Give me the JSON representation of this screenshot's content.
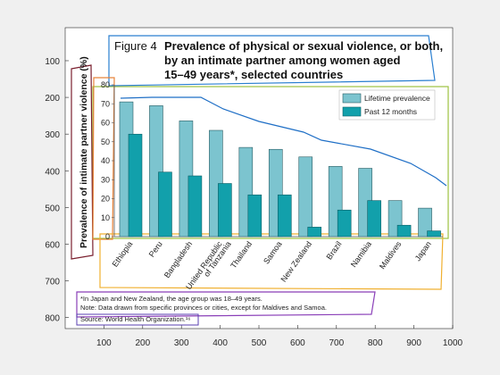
{
  "chart_data": {
    "type": "bar",
    "figure": {
      "label": "Figure 4",
      "title_lines": [
        "Prevalence of physical or sexual violence, or both,",
        "by an intimate partner among women aged",
        "15–49 years*, selected countries"
      ]
    },
    "ylabel": "Prevalence of intimate partner violence (%)",
    "ylim": [
      0,
      80
    ],
    "yticks": [
      0,
      10,
      20,
      30,
      40,
      50,
      60,
      70,
      80
    ],
    "categories": [
      [
        "Ethiopia"
      ],
      [
        "Peru"
      ],
      [
        "Bangladesh"
      ],
      [
        "United Republic",
        "of Tanzania"
      ],
      [
        "Thailand"
      ],
      [
        "Samoa"
      ],
      [
        "New Zealand"
      ],
      [
        "Brazil"
      ],
      [
        "Namibia"
      ],
      [
        "Maldives"
      ],
      [
        "Japan"
      ]
    ],
    "series": [
      {
        "name": "Lifetime prevalence",
        "color": "#7cc4cf",
        "values": [
          71,
          69,
          61,
          56,
          47,
          46,
          42,
          37,
          36,
          19,
          15
        ]
      },
      {
        "name": "Past 12 months",
        "color": "#12a0ab",
        "values": [
          54,
          34,
          32,
          28,
          22,
          22,
          5,
          14,
          19,
          6,
          3
        ]
      }
    ],
    "footnotes": [
      "*In Japan and New Zealand, the age group was 18–49 years.",
      "Note: Data drawn from specific provinces or cities, except for Maldives and Samoa.",
      "Source: World Health Organization.¹⁶"
    ],
    "grid": false,
    "legend_position": "top-right"
  },
  "outer_axes": {
    "xticks": [
      100,
      200,
      300,
      400,
      500,
      600,
      700,
      800,
      900,
      1000
    ],
    "yticks": [
      100,
      200,
      300,
      400,
      500,
      600,
      700,
      800
    ]
  },
  "trend_line": {
    "color": "#1f6fc6",
    "points": [
      [
        135,
        110
      ],
      [
        170,
        109
      ],
      [
        225,
        109
      ],
      [
        250,
        122
      ],
      [
        290,
        136
      ],
      [
        340,
        148
      ],
      [
        360,
        157
      ],
      [
        415,
        167
      ],
      [
        460,
        183
      ],
      [
        488,
        199
      ],
      [
        500,
        208
      ]
    ]
  }
}
